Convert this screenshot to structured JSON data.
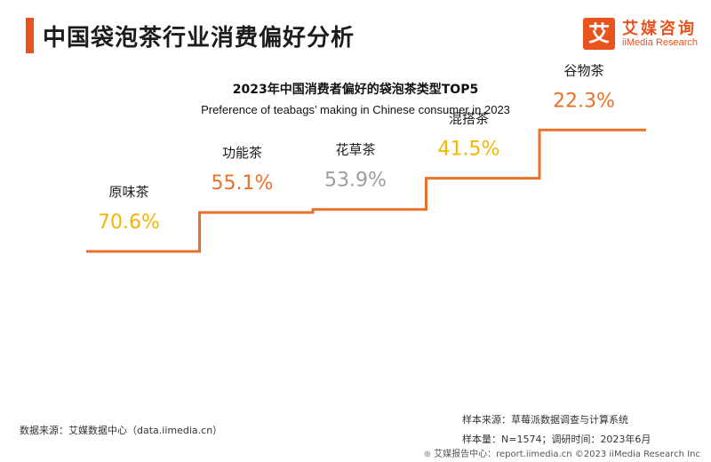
{
  "header": {
    "title": "中国袋泡茶行业消费偏好分析",
    "logo_mark": "艾",
    "logo_cn": "艾媒咨询",
    "logo_en": "iiMedia Research"
  },
  "chart_data": {
    "type": "line",
    "title": "2023年中国消费者偏好的袋泡茶类型TOP5",
    "subtitle": "Preference of teabags’  making in Chinese consumer in 2023",
    "categories": [
      "原味茶",
      "功能茶",
      "花草茶",
      "混搭茶",
      "谷物茶"
    ],
    "values": [
      70.6,
      55.1,
      53.9,
      41.5,
      22.3
    ],
    "value_labels": [
      "70.6%",
      "55.1%",
      "53.9%",
      "41.5%",
      "22.3%"
    ],
    "label_colors": [
      "#f2b705",
      "#e8722a",
      "#9e9e9e",
      "#f2b705",
      "#e8722a"
    ],
    "line_color": "#e8722a"
  },
  "footer": {
    "source": "数据来源：艾媒数据中心（data.iimedia.cn）",
    "sample_source": "样本来源：草莓派数据调查与计算系统",
    "sample_size": "样本量：N=1574；调研时间：2023年6月",
    "copyright": "艾媒报告中心：report.iimedia.cn  ©2023  iiMedia Research Inc",
    "copyright_icon": "globe-icon"
  }
}
